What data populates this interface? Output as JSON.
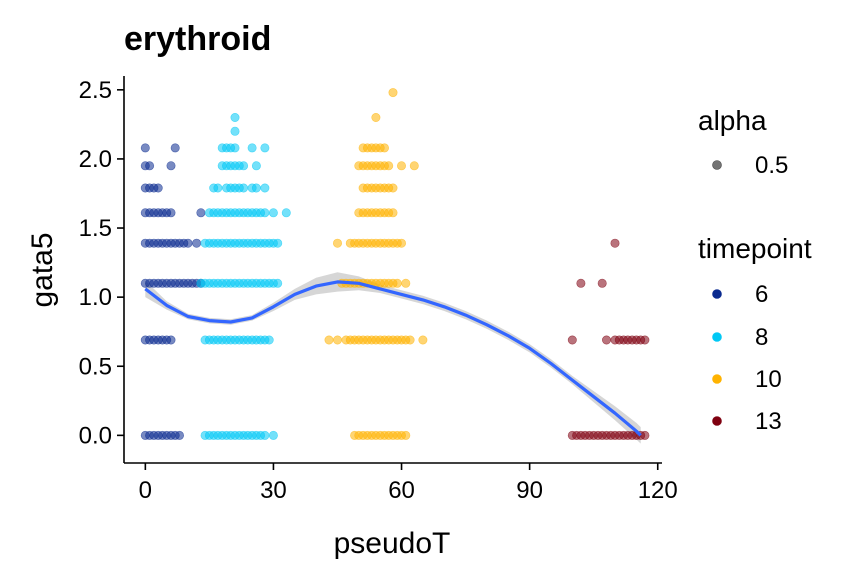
{
  "chart_data": {
    "type": "scatter",
    "title": "erythroid",
    "xlabel": "pseudoT",
    "ylabel": "gata5",
    "xlim": [
      -5,
      121
    ],
    "ylim": [
      -0.2,
      2.6
    ],
    "xticks": [
      "0",
      "30",
      "60",
      "90",
      "120"
    ],
    "yticks": [
      "0.0",
      "0.5",
      "1.0",
      "1.5",
      "2.0",
      "2.5"
    ],
    "grid": false,
    "legend_position": "right",
    "legends": [
      {
        "title": "alpha",
        "entries": [
          {
            "label": "0.5",
            "color": "#000000"
          }
        ]
      },
      {
        "title": "timepoint",
        "entries": [
          {
            "label": "6",
            "color": "#0a2a8f"
          },
          {
            "label": "8",
            "color": "#00c8f5"
          },
          {
            "label": "10",
            "color": "#ffb300"
          },
          {
            "label": "13",
            "color": "#7f0010"
          }
        ]
      }
    ],
    "series": [
      {
        "name": "6",
        "color": "#0a2a8f",
        "points": [
          [
            0,
            0
          ],
          [
            1,
            0
          ],
          [
            2,
            0
          ],
          [
            3,
            0
          ],
          [
            4,
            0
          ],
          [
            5,
            0
          ],
          [
            6,
            0
          ],
          [
            7,
            0
          ],
          [
            8,
            0
          ],
          [
            0,
            0.69
          ],
          [
            1,
            0.69
          ],
          [
            2,
            0.69
          ],
          [
            3,
            0.69
          ],
          [
            4,
            0.69
          ],
          [
            5,
            0.69
          ],
          [
            6,
            0.69
          ],
          [
            0,
            1.1
          ],
          [
            1,
            1.1
          ],
          [
            2,
            1.1
          ],
          [
            3,
            1.1
          ],
          [
            4,
            1.1
          ],
          [
            5,
            1.1
          ],
          [
            6,
            1.1
          ],
          [
            7,
            1.1
          ],
          [
            8,
            1.1
          ],
          [
            9,
            1.1
          ],
          [
            10,
            1.1
          ],
          [
            11,
            1.1
          ],
          [
            12,
            1.1
          ],
          [
            13,
            1.1
          ],
          [
            0,
            1.39
          ],
          [
            1,
            1.39
          ],
          [
            2,
            1.39
          ],
          [
            3,
            1.39
          ],
          [
            4,
            1.39
          ],
          [
            5,
            1.39
          ],
          [
            6,
            1.39
          ],
          [
            7,
            1.39
          ],
          [
            8,
            1.39
          ],
          [
            9,
            1.39
          ],
          [
            10,
            1.39
          ],
          [
            12,
            1.39
          ],
          [
            0,
            1.61
          ],
          [
            1,
            1.61
          ],
          [
            2,
            1.61
          ],
          [
            3,
            1.61
          ],
          [
            4,
            1.61
          ],
          [
            5,
            1.61
          ],
          [
            6,
            1.61
          ],
          [
            13,
            1.61
          ],
          [
            0,
            1.79
          ],
          [
            1,
            1.79
          ],
          [
            2,
            1.79
          ],
          [
            3,
            1.79
          ],
          [
            0,
            1.95
          ],
          [
            1,
            1.95
          ],
          [
            6,
            1.95
          ],
          [
            0,
            2.08
          ],
          [
            7,
            2.08
          ]
        ]
      },
      {
        "name": "8",
        "color": "#00c8f5",
        "points": [
          [
            14,
            0
          ],
          [
            15,
            0
          ],
          [
            16,
            0
          ],
          [
            17,
            0
          ],
          [
            18,
            0
          ],
          [
            19,
            0
          ],
          [
            20,
            0
          ],
          [
            21,
            0
          ],
          [
            22,
            0
          ],
          [
            23,
            0
          ],
          [
            24,
            0
          ],
          [
            25,
            0
          ],
          [
            26,
            0
          ],
          [
            27,
            0
          ],
          [
            28,
            0
          ],
          [
            30,
            0
          ],
          [
            14,
            0.69
          ],
          [
            15,
            0.69
          ],
          [
            16,
            0.69
          ],
          [
            17,
            0.69
          ],
          [
            18,
            0.69
          ],
          [
            19,
            0.69
          ],
          [
            20,
            0.69
          ],
          [
            21,
            0.69
          ],
          [
            22,
            0.69
          ],
          [
            23,
            0.69
          ],
          [
            24,
            0.69
          ],
          [
            25,
            0.69
          ],
          [
            26,
            0.69
          ],
          [
            27,
            0.69
          ],
          [
            28,
            0.69
          ],
          [
            29,
            0.69
          ],
          [
            13,
            1.1
          ],
          [
            14,
            1.1
          ],
          [
            15,
            1.1
          ],
          [
            16,
            1.1
          ],
          [
            17,
            1.1
          ],
          [
            18,
            1.1
          ],
          [
            19,
            1.1
          ],
          [
            20,
            1.1
          ],
          [
            21,
            1.1
          ],
          [
            22,
            1.1
          ],
          [
            23,
            1.1
          ],
          [
            24,
            1.1
          ],
          [
            25,
            1.1
          ],
          [
            26,
            1.1
          ],
          [
            27,
            1.1
          ],
          [
            28,
            1.1
          ],
          [
            29,
            1.1
          ],
          [
            30,
            1.1
          ],
          [
            31,
            1.1
          ],
          [
            14,
            1.39
          ],
          [
            15,
            1.39
          ],
          [
            16,
            1.39
          ],
          [
            17,
            1.39
          ],
          [
            18,
            1.39
          ],
          [
            19,
            1.39
          ],
          [
            20,
            1.39
          ],
          [
            21,
            1.39
          ],
          [
            22,
            1.39
          ],
          [
            23,
            1.39
          ],
          [
            24,
            1.39
          ],
          [
            25,
            1.39
          ],
          [
            26,
            1.39
          ],
          [
            27,
            1.39
          ],
          [
            28,
            1.39
          ],
          [
            29,
            1.39
          ],
          [
            30,
            1.39
          ],
          [
            31,
            1.39
          ],
          [
            15,
            1.61
          ],
          [
            16,
            1.61
          ],
          [
            17,
            1.61
          ],
          [
            18,
            1.61
          ],
          [
            19,
            1.61
          ],
          [
            20,
            1.61
          ],
          [
            21,
            1.61
          ],
          [
            22,
            1.61
          ],
          [
            23,
            1.61
          ],
          [
            24,
            1.61
          ],
          [
            25,
            1.61
          ],
          [
            26,
            1.61
          ],
          [
            27,
            1.61
          ],
          [
            28,
            1.61
          ],
          [
            30,
            1.61
          ],
          [
            33,
            1.61
          ],
          [
            16,
            1.79
          ],
          [
            17,
            1.79
          ],
          [
            19,
            1.79
          ],
          [
            20,
            1.79
          ],
          [
            21,
            1.79
          ],
          [
            22,
            1.79
          ],
          [
            23,
            1.79
          ],
          [
            25,
            1.79
          ],
          [
            26,
            1.79
          ],
          [
            28,
            1.79
          ],
          [
            18,
            1.95
          ],
          [
            19,
            1.95
          ],
          [
            20,
            1.95
          ],
          [
            21,
            1.95
          ],
          [
            22,
            1.95
          ],
          [
            23,
            1.95
          ],
          [
            26,
            1.95
          ],
          [
            18,
            2.08
          ],
          [
            19,
            2.08
          ],
          [
            20,
            2.08
          ],
          [
            21,
            2.08
          ],
          [
            25,
            2.08
          ],
          [
            28,
            2.08
          ],
          [
            21,
            2.2
          ],
          [
            21,
            2.3
          ]
        ]
      },
      {
        "name": "10",
        "color": "#ffb300",
        "points": [
          [
            49,
            0
          ],
          [
            50,
            0
          ],
          [
            51,
            0
          ],
          [
            52,
            0
          ],
          [
            53,
            0
          ],
          [
            54,
            0
          ],
          [
            55,
            0
          ],
          [
            56,
            0
          ],
          [
            57,
            0
          ],
          [
            58,
            0
          ],
          [
            59,
            0
          ],
          [
            60,
            0
          ],
          [
            61,
            0
          ],
          [
            43,
            0.69
          ],
          [
            45,
            0.69
          ],
          [
            47,
            0.69
          ],
          [
            48,
            0.69
          ],
          [
            49,
            0.69
          ],
          [
            50,
            0.69
          ],
          [
            51,
            0.69
          ],
          [
            52,
            0.69
          ],
          [
            53,
            0.69
          ],
          [
            54,
            0.69
          ],
          [
            55,
            0.69
          ],
          [
            56,
            0.69
          ],
          [
            57,
            0.69
          ],
          [
            58,
            0.69
          ],
          [
            59,
            0.69
          ],
          [
            60,
            0.69
          ],
          [
            61,
            0.69
          ],
          [
            62,
            0.69
          ],
          [
            65,
            0.69
          ],
          [
            46,
            1.1
          ],
          [
            47,
            1.1
          ],
          [
            48,
            1.1
          ],
          [
            49,
            1.1
          ],
          [
            50,
            1.1
          ],
          [
            51,
            1.1
          ],
          [
            52,
            1.1
          ],
          [
            53,
            1.1
          ],
          [
            54,
            1.1
          ],
          [
            55,
            1.1
          ],
          [
            56,
            1.1
          ],
          [
            57,
            1.1
          ],
          [
            58,
            1.1
          ],
          [
            59,
            1.1
          ],
          [
            61,
            1.1
          ],
          [
            45,
            1.39
          ],
          [
            48,
            1.39
          ],
          [
            49,
            1.39
          ],
          [
            50,
            1.39
          ],
          [
            51,
            1.39
          ],
          [
            52,
            1.39
          ],
          [
            53,
            1.39
          ],
          [
            54,
            1.39
          ],
          [
            55,
            1.39
          ],
          [
            56,
            1.39
          ],
          [
            57,
            1.39
          ],
          [
            58,
            1.39
          ],
          [
            59,
            1.39
          ],
          [
            60,
            1.39
          ],
          [
            50,
            1.61
          ],
          [
            51,
            1.61
          ],
          [
            52,
            1.61
          ],
          [
            53,
            1.61
          ],
          [
            54,
            1.61
          ],
          [
            55,
            1.61
          ],
          [
            56,
            1.61
          ],
          [
            57,
            1.61
          ],
          [
            58,
            1.61
          ],
          [
            51,
            1.79
          ],
          [
            52,
            1.79
          ],
          [
            53,
            1.79
          ],
          [
            54,
            1.79
          ],
          [
            55,
            1.79
          ],
          [
            56,
            1.79
          ],
          [
            57,
            1.79
          ],
          [
            58,
            1.79
          ],
          [
            50,
            1.95
          ],
          [
            51,
            1.95
          ],
          [
            52,
            1.95
          ],
          [
            53,
            1.95
          ],
          [
            54,
            1.95
          ],
          [
            55,
            1.95
          ],
          [
            56,
            1.95
          ],
          [
            57,
            1.95
          ],
          [
            60,
            1.95
          ],
          [
            63,
            1.95
          ],
          [
            51,
            2.08
          ],
          [
            52,
            2.08
          ],
          [
            53,
            2.08
          ],
          [
            54,
            2.08
          ],
          [
            55,
            2.08
          ],
          [
            56,
            2.08
          ],
          [
            54,
            2.3
          ],
          [
            58,
            2.48
          ]
        ]
      },
      {
        "name": "13",
        "color": "#7f0010",
        "points": [
          [
            100,
            0
          ],
          [
            101,
            0
          ],
          [
            102,
            0
          ],
          [
            103,
            0
          ],
          [
            104,
            0
          ],
          [
            105,
            0
          ],
          [
            106,
            0
          ],
          [
            107,
            0
          ],
          [
            108,
            0
          ],
          [
            109,
            0
          ],
          [
            110,
            0
          ],
          [
            111,
            0
          ],
          [
            112,
            0
          ],
          [
            113,
            0
          ],
          [
            114,
            0
          ],
          [
            115,
            0
          ],
          [
            116,
            0
          ],
          [
            117,
            0
          ],
          [
            100,
            0.69
          ],
          [
            108,
            0.69
          ],
          [
            110,
            0.69
          ],
          [
            111,
            0.69
          ],
          [
            112,
            0.69
          ],
          [
            113,
            0.69
          ],
          [
            114,
            0.69
          ],
          [
            115,
            0.69
          ],
          [
            116,
            0.69
          ],
          [
            117,
            0.69
          ],
          [
            102,
            1.1
          ],
          [
            107,
            1.1
          ],
          [
            110,
            1.39
          ]
        ]
      }
    ],
    "smooth": {
      "color": "#3366ff",
      "x": [
        0,
        5,
        10,
        15,
        20,
        25,
        30,
        35,
        40,
        45,
        50,
        55,
        60,
        65,
        70,
        75,
        80,
        85,
        90,
        95,
        100,
        105,
        110,
        115,
        116
      ],
      "y": [
        1.06,
        0.94,
        0.86,
        0.83,
        0.82,
        0.85,
        0.93,
        1.02,
        1.08,
        1.11,
        1.1,
        1.06,
        1.02,
        0.98,
        0.93,
        0.87,
        0.8,
        0.72,
        0.63,
        0.52,
        0.4,
        0.28,
        0.16,
        0.03,
        0.0
      ],
      "lower": [
        1.0,
        0.91,
        0.84,
        0.81,
        0.8,
        0.83,
        0.9,
        0.98,
        1.02,
        1.04,
        1.05,
        1.03,
        0.99,
        0.95,
        0.9,
        0.84,
        0.77,
        0.69,
        0.6,
        0.49,
        0.37,
        0.24,
        0.11,
        -0.03,
        -0.06
      ],
      "upper": [
        1.12,
        0.97,
        0.88,
        0.85,
        0.84,
        0.87,
        0.96,
        1.06,
        1.14,
        1.18,
        1.15,
        1.09,
        1.05,
        1.01,
        0.96,
        0.9,
        0.83,
        0.75,
        0.66,
        0.55,
        0.43,
        0.32,
        0.21,
        0.09,
        0.06
      ]
    }
  }
}
